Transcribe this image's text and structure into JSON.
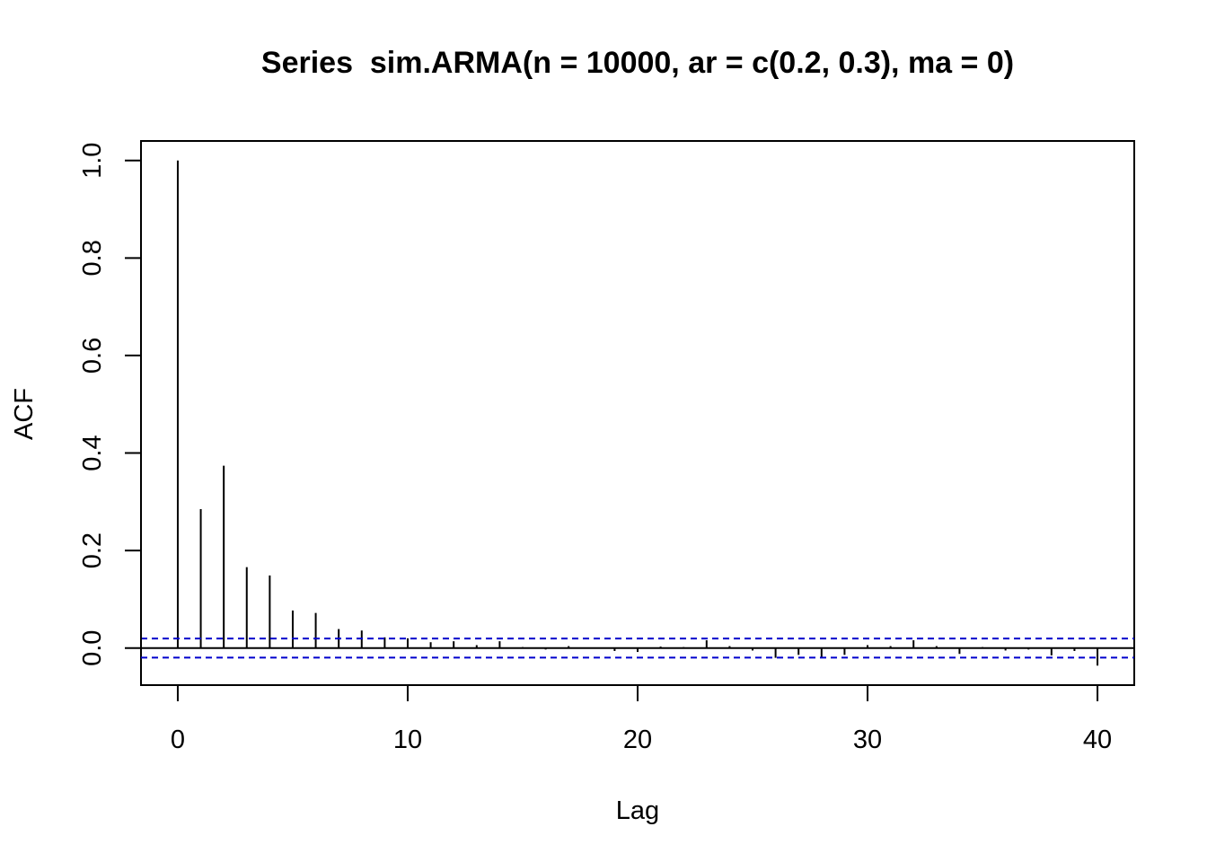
{
  "chart_data": {
    "type": "bar",
    "title": "Series  sim.ARMA(n = 10000, ar = c(0.2, 0.3), ma = 0)",
    "xlabel": "Lag",
    "ylabel": "ACF",
    "xlim": [
      -1.6,
      41.6
    ],
    "ylim": [
      -0.076,
      1.04
    ],
    "x_ticks": [
      0,
      10,
      20,
      30,
      40
    ],
    "x_tick_labels": [
      "0",
      "10",
      "20",
      "30",
      "40"
    ],
    "y_ticks": [
      0.0,
      0.2,
      0.4,
      0.6,
      0.8,
      1.0
    ],
    "y_tick_labels": [
      "0.0",
      "0.2",
      "0.4",
      "0.6",
      "0.8",
      "1.0"
    ],
    "lags": [
      0,
      1,
      2,
      3,
      4,
      5,
      6,
      7,
      8,
      9,
      10,
      11,
      12,
      13,
      14,
      15,
      16,
      17,
      18,
      19,
      20,
      21,
      22,
      23,
      24,
      25,
      26,
      27,
      28,
      29,
      30,
      31,
      32,
      33,
      34,
      35,
      36,
      37,
      38,
      39,
      40
    ],
    "acf": [
      1.0,
      0.285,
      0.374,
      0.166,
      0.149,
      0.077,
      0.072,
      0.039,
      0.036,
      0.022,
      0.02,
      0.012,
      0.014,
      0.006,
      0.014,
      0.002,
      -0.003,
      0.004,
      0.001,
      -0.006,
      -0.008,
      0.003,
      0.002,
      0.016,
      0.004,
      -0.005,
      -0.02,
      -0.014,
      -0.019,
      -0.014,
      0.006,
      0.004,
      0.016,
      0.004,
      -0.012,
      0.002,
      -0.005,
      -0.003,
      -0.015,
      -0.006,
      -0.036
    ],
    "confidence_bound": 0.0196,
    "confidence_color": "#0000cc",
    "bar_color": "#000000",
    "grid": false,
    "legend": "none"
  }
}
